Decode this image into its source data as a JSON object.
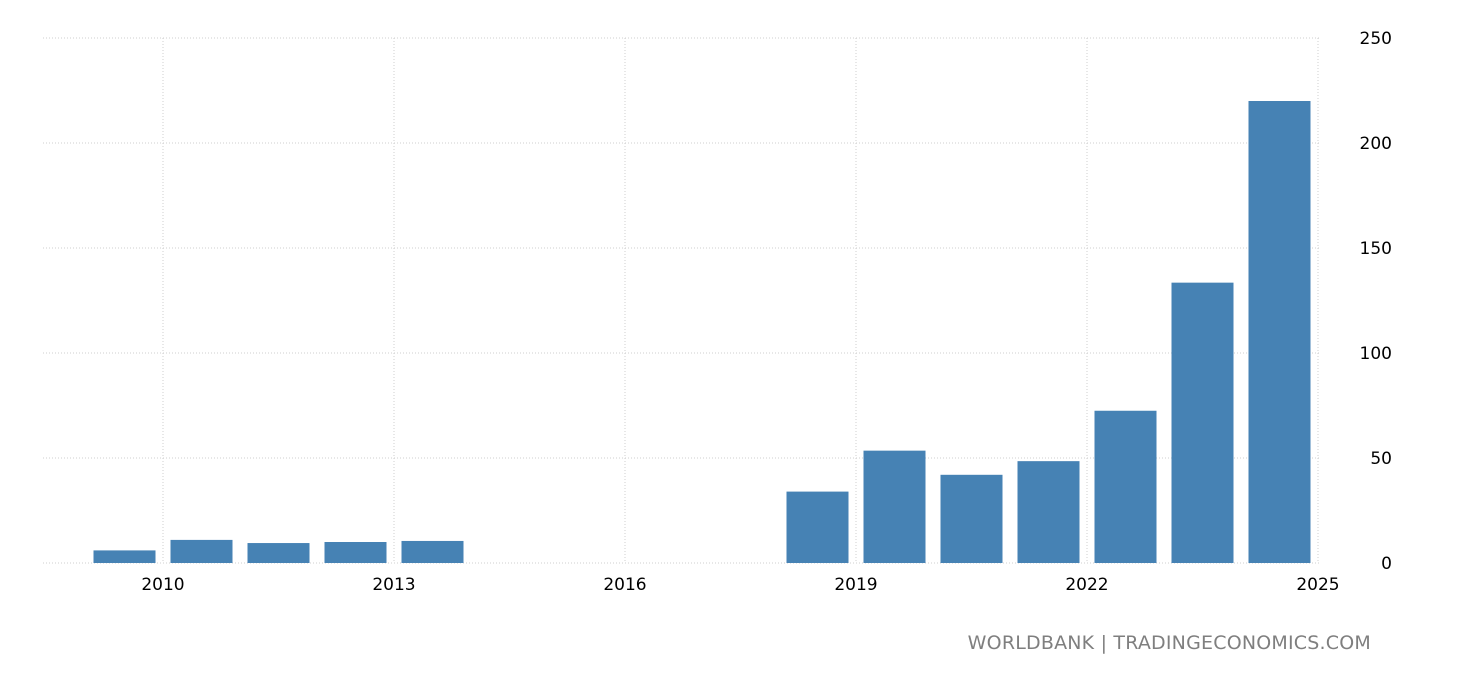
{
  "chart_data": {
    "type": "bar",
    "title": "",
    "xlabel": "",
    "ylabel": "",
    "categories": [
      2009,
      2010,
      2011,
      2012,
      2013,
      2014,
      2015,
      2016,
      2017,
      2018,
      2019,
      2020,
      2021,
      2022,
      2023,
      2024
    ],
    "values": [
      6,
      11,
      9.5,
      10,
      10.5,
      null,
      null,
      null,
      null,
      34,
      53.5,
      42,
      48.5,
      72.5,
      133.5,
      220
    ],
    "x_ticks": [
      2010,
      2013,
      2016,
      2019,
      2022,
      2025
    ],
    "y_ticks": [
      0,
      50,
      100,
      150,
      200,
      250
    ],
    "ylim": [
      0,
      250
    ],
    "xlim": [
      2008.5,
      2025
    ],
    "y_axis_side": "right",
    "grid": true,
    "bar_color": "#4682b4"
  },
  "credit": "WORLDBANK | TRADINGECONOMICS.COM"
}
